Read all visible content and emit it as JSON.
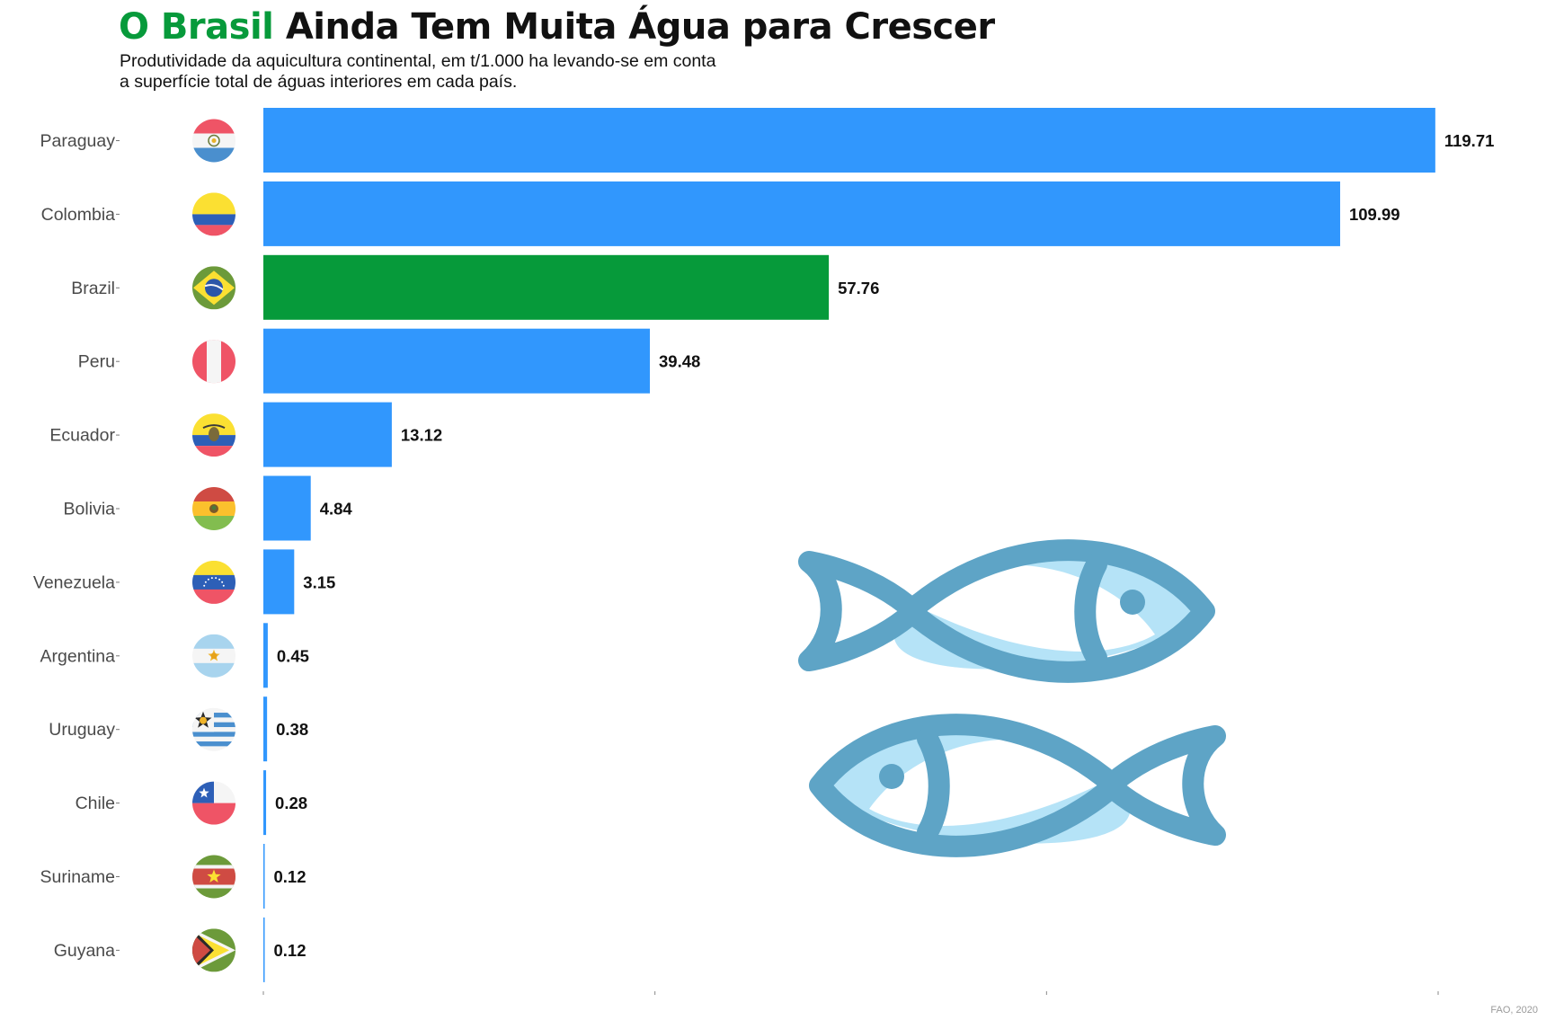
{
  "header": {
    "title_accent": "O Brasil",
    "title_rest": "Ainda Tem Muita Água para Crescer",
    "subtitle_line1": "Produtividade da aquicultura continental, em t/1.000 ha levando-se em conta",
    "subtitle_line2": "a superfície total de águas interiores em cada país."
  },
  "source": "FAO, 2020",
  "colors": {
    "bar": "#3197fd",
    "highlight": "#069a3a",
    "title_accent": "#079a3b",
    "fish_outline": "#5ea4c6",
    "fish_fill": "#b5e3f7"
  },
  "decorations": [
    "fish-icon",
    "fish-icon"
  ],
  "chart_data": {
    "type": "bar",
    "orientation": "horizontal",
    "categories": [
      "Paraguay",
      "Colombia",
      "Brazil",
      "Peru",
      "Ecuador",
      "Bolivia",
      "Venezuela",
      "Argentina",
      "Uruguay",
      "Chile",
      "Suriname",
      "Guyana"
    ],
    "values": [
      119.71,
      109.99,
      57.76,
      39.48,
      13.12,
      4.84,
      3.15,
      0.45,
      0.38,
      0.28,
      0.12,
      0.12
    ],
    "value_labels": [
      "119.71",
      "109.99",
      "57.76",
      "39.48",
      "13.12",
      "4.84",
      "3.15",
      "0.45",
      "0.38",
      "0.28",
      "0.12",
      "0.12"
    ],
    "highlight": "Brazil",
    "icons": [
      "paraguay-flag-icon",
      "colombia-flag-icon",
      "brazil-flag-icon",
      "peru-flag-icon",
      "ecuador-flag-icon",
      "bolivia-flag-icon",
      "venezuela-flag-icon",
      "argentina-flag-icon",
      "uruguay-flag-icon",
      "chile-flag-icon",
      "suriname-flag-icon",
      "guyana-flag-icon"
    ],
    "xlim": [
      0,
      120
    ],
    "x_ticks": [
      0,
      40,
      80,
      120
    ],
    "x_tick_labels_shown": false,
    "grid": false,
    "legend": "none"
  }
}
